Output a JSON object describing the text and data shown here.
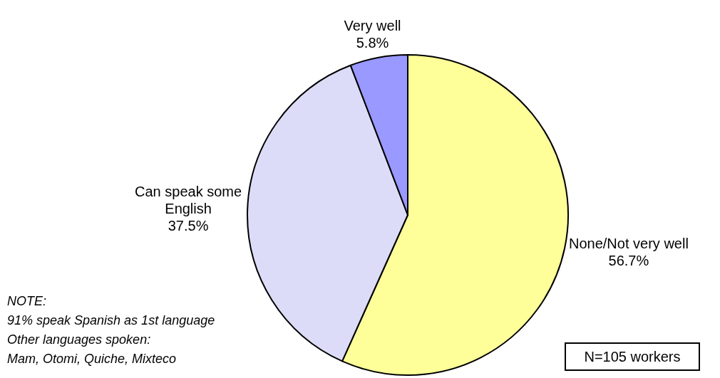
{
  "chart_data": {
    "type": "pie",
    "categories": [
      "None/Not very well",
      "Can speak some English",
      "Very well"
    ],
    "values": [
      56.7,
      37.5,
      5.8
    ],
    "colors": [
      "#ffff99",
      "#dcdcf8",
      "#9999ff"
    ],
    "value_labels": [
      "56.7%",
      "37.5%",
      "5.8%"
    ],
    "legend": false,
    "annotations": [
      "NOTE:",
      "91% speak Spanish as 1st language",
      "Other languages spoken:",
      "Mam, Otomi, Quiche, Mixteco",
      "N=105 workers"
    ]
  }
}
